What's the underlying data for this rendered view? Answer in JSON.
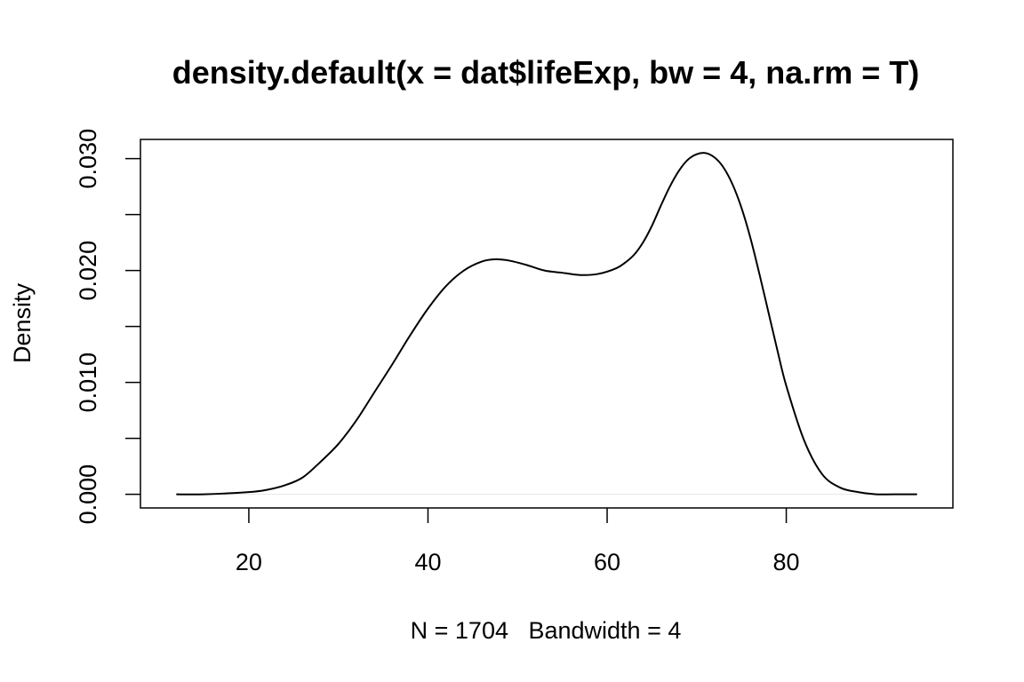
{
  "chart_data": {
    "type": "line",
    "title": "density.default(x = dat$lifeExp, bw = 4, na.rm = T)",
    "xlabel": "N = 1704   Bandwidth = 4",
    "ylabel": "Density",
    "xlim": [
      7.9,
      98.6
    ],
    "ylim": [
      -0.00122,
      0.03172
    ],
    "x_ticks": [
      20,
      40,
      60,
      80
    ],
    "x_tick_labels": [
      "20",
      "40",
      "60",
      "80"
    ],
    "y_ticks": [
      0.0,
      0.005,
      0.01,
      0.015,
      0.02,
      0.025,
      0.03
    ],
    "y_tick_labels": [
      "0.000",
      "",
      "0.010",
      "",
      "0.020",
      "",
      "0.030"
    ],
    "grid": false,
    "legend": "none",
    "baseline": 0,
    "series": [
      {
        "color": "#000000",
        "x": [
          11.9,
          15,
          20,
          22,
          24,
          26,
          28,
          30,
          32,
          34,
          36,
          38,
          40,
          42,
          44,
          46,
          47.5,
          49,
          51,
          53,
          55,
          57,
          59,
          61,
          62,
          63,
          64,
          65,
          66,
          67,
          68,
          69,
          70,
          71,
          72,
          73,
          74,
          75,
          76,
          77,
          78,
          79,
          80,
          82,
          84,
          86,
          88,
          90,
          92,
          94.6
        ],
        "y": [
          0.0,
          0.0,
          0.0002,
          0.0004,
          0.0008,
          0.0015,
          0.0029,
          0.0045,
          0.0066,
          0.0091,
          0.0116,
          0.0142,
          0.0166,
          0.0186,
          0.02,
          0.0208,
          0.021,
          0.0209,
          0.0205,
          0.02,
          0.0198,
          0.0196,
          0.0197,
          0.0202,
          0.0207,
          0.0214,
          0.0225,
          0.024,
          0.0258,
          0.0275,
          0.0289,
          0.0299,
          0.0304,
          0.0305,
          0.0301,
          0.0292,
          0.0277,
          0.0256,
          0.0229,
          0.0197,
          0.0163,
          0.0129,
          0.0097,
          0.0048,
          0.0018,
          0.0006,
          0.0002,
          0.0,
          0.0,
          0.0
        ]
      }
    ]
  }
}
